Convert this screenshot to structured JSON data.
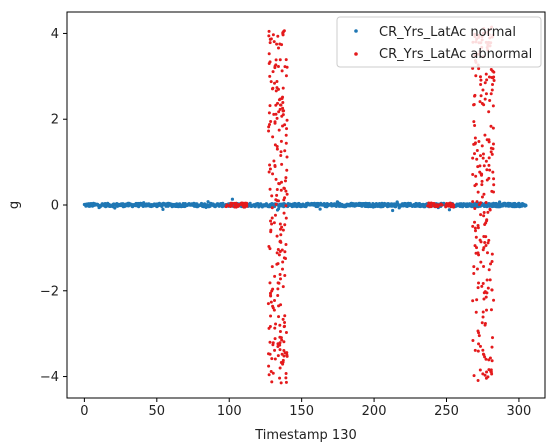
{
  "chart_data": {
    "type": "scatter",
    "title": "",
    "xlabel": "Timestamp 130",
    "ylabel": "g",
    "xlim": [
      -12,
      318
    ],
    "ylim": [
      -4.5,
      4.5
    ],
    "xticks": [
      0,
      50,
      100,
      150,
      200,
      250,
      300
    ],
    "yticks": [
      -4,
      -2,
      0,
      2,
      4
    ],
    "xtick_labels": [
      "0",
      "50",
      "100",
      "150",
      "200",
      "250",
      "300"
    ],
    "ytick_labels": [
      "−4",
      "−2",
      "0",
      "2",
      "4"
    ],
    "grid": false,
    "legend_position": "top-right",
    "series": [
      {
        "name": "CR_Yrs_LatAc normal",
        "color": "#1f77b4",
        "x_range": [
          0,
          305
        ],
        "y_center": 0.0,
        "y_spread": 0.08
      },
      {
        "name": "CR_Yrs_LatAc abnormal",
        "color": "#e41a1c",
        "segments": [
          {
            "x_range": [
              97,
              113
            ],
            "y_range": [
              -0.05,
              0.05
            ]
          },
          {
            "x_range": [
              127,
              140
            ],
            "y_range": [
              -4.15,
              4.15
            ]
          },
          {
            "x_range": [
              237,
              255
            ],
            "y_range": [
              -0.05,
              0.05
            ]
          },
          {
            "x_range": [
              268,
              283
            ],
            "y_range": [
              -4.15,
              4.15
            ]
          }
        ]
      }
    ]
  }
}
